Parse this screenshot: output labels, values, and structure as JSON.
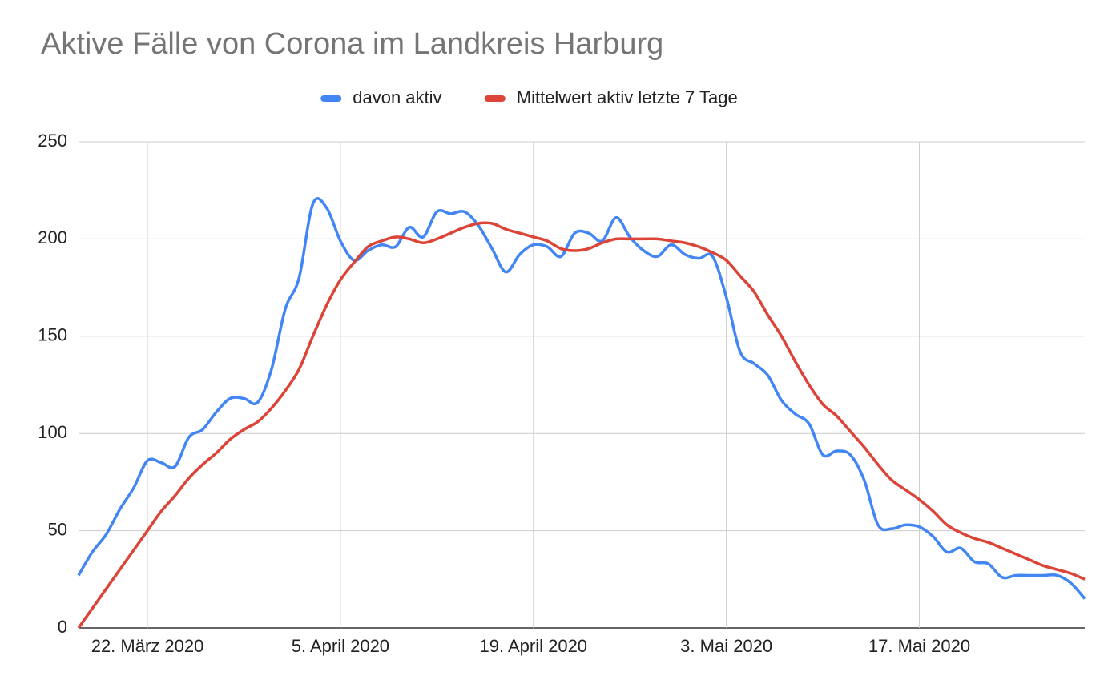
{
  "chart_data": {
    "type": "line",
    "title": "Aktive Fälle von Corona im Landkreis Harburg",
    "legend": "top",
    "grid": true,
    "x": [
      "2020-03-17",
      "2020-03-18",
      "2020-03-19",
      "2020-03-20",
      "2020-03-21",
      "2020-03-22",
      "2020-03-23",
      "2020-03-24",
      "2020-03-25",
      "2020-03-26",
      "2020-03-27",
      "2020-03-28",
      "2020-03-29",
      "2020-03-30",
      "2020-03-31",
      "2020-04-01",
      "2020-04-02",
      "2020-04-03",
      "2020-04-04",
      "2020-04-05",
      "2020-04-06",
      "2020-04-07",
      "2020-04-08",
      "2020-04-09",
      "2020-04-10",
      "2020-04-11",
      "2020-04-12",
      "2020-04-13",
      "2020-04-14",
      "2020-04-15",
      "2020-04-16",
      "2020-04-17",
      "2020-04-18",
      "2020-04-19",
      "2020-04-20",
      "2020-04-21",
      "2020-04-22",
      "2020-04-23",
      "2020-04-24",
      "2020-04-25",
      "2020-04-26",
      "2020-04-27",
      "2020-04-28",
      "2020-04-29",
      "2020-04-30",
      "2020-05-01",
      "2020-05-02",
      "2020-05-03",
      "2020-05-04",
      "2020-05-05",
      "2020-05-06",
      "2020-05-07",
      "2020-05-08",
      "2020-05-09",
      "2020-05-10",
      "2020-05-11",
      "2020-05-12",
      "2020-05-13",
      "2020-05-14",
      "2020-05-15",
      "2020-05-16",
      "2020-05-17",
      "2020-05-18",
      "2020-05-19",
      "2020-05-20",
      "2020-05-21",
      "2020-05-22",
      "2020-05-23",
      "2020-05-24",
      "2020-05-25",
      "2020-05-26",
      "2020-05-27",
      "2020-05-28",
      "2020-05-29"
    ],
    "xlim": [
      "2020-03-17",
      "2020-05-29"
    ],
    "xticks": [
      {
        "value": "2020-03-22",
        "label": "22. März 2020"
      },
      {
        "value": "2020-04-05",
        "label": "5. April 2020"
      },
      {
        "value": "2020-04-19",
        "label": "19. April 2020"
      },
      {
        "value": "2020-05-03",
        "label": "3. Mai 2020"
      },
      {
        "value": "2020-05-17",
        "label": "17. Mai 2020"
      }
    ],
    "ylim": [
      0,
      250
    ],
    "yticks": [
      0,
      50,
      100,
      150,
      200,
      250
    ],
    "series": [
      {
        "name": "davon aktiv",
        "color": "#4285f4",
        "values": [
          27,
          39,
          48,
          61,
          72,
          86,
          85,
          83,
          98,
          102,
          111,
          118,
          118,
          116,
          133,
          164,
          180,
          218,
          216,
          199,
          189,
          194,
          197,
          196,
          206,
          201,
          214,
          213,
          214,
          207,
          195,
          183,
          192,
          197,
          196,
          191,
          203,
          203,
          199,
          211,
          201,
          194,
          191,
          197,
          192,
          190,
          191,
          170,
          142,
          136,
          130,
          117,
          110,
          105,
          89,
          91,
          89,
          76,
          53,
          51,
          53,
          52,
          47,
          39,
          41,
          34,
          33,
          26,
          27,
          27,
          27,
          27,
          23,
          15
        ]
      },
      {
        "name": "Mittelwert aktiv letzte 7 Tage",
        "color": "#db4437",
        "values": [
          0,
          10,
          20,
          30,
          40,
          50,
          60,
          68,
          77,
          84,
          90,
          97,
          102,
          106,
          113,
          122,
          133,
          150,
          166,
          179,
          188,
          196,
          199,
          201,
          200,
          198,
          200,
          203,
          206,
          208,
          208,
          205,
          203,
          201,
          199,
          195,
          194,
          195,
          198,
          200,
          200,
          200,
          200,
          199,
          198,
          196,
          193,
          189,
          181,
          173,
          161,
          150,
          137,
          125,
          115,
          109,
          101,
          93,
          84,
          76,
          71,
          66,
          60,
          53,
          49,
          46,
          44,
          41,
          38,
          35,
          32,
          30,
          28,
          25
        ]
      }
    ]
  }
}
